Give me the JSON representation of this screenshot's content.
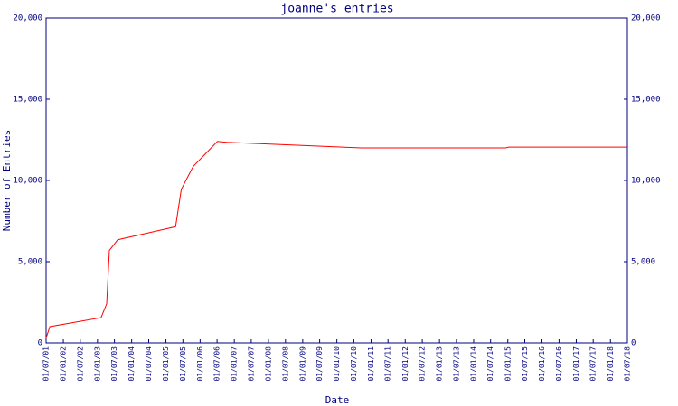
{
  "chart_data": {
    "type": "line",
    "title": "joanne's entries",
    "xlabel": "Date",
    "ylabel": "Number of Entries",
    "x": [
      "01/07/01",
      "10/08/01",
      "08/02/03",
      "09/04/03",
      "08/05/03",
      "05/08/03",
      "14/04/05",
      "14/06/05",
      "18/10/05",
      "05/07/06",
      "11/10/06",
      "21/09/10",
      "10/12/14",
      "12/01/15",
      "01/07/18"
    ],
    "values": [
      300,
      1000,
      1550,
      2400,
      5700,
      6350,
      7150,
      9450,
      10850,
      12400,
      12350,
      12000,
      12000,
      12050,
      12050
    ],
    "color": "#ff0000",
    "xlim": [
      "01/07/01",
      "01/07/18"
    ],
    "xticks": [
      "01/07/01",
      "01/01/02",
      "01/07/02",
      "01/01/03",
      "01/07/03",
      "01/01/04",
      "01/07/04",
      "01/01/05",
      "01/07/05",
      "01/01/06",
      "01/07/06",
      "01/01/07",
      "01/07/07",
      "01/01/08",
      "01/07/08",
      "01/01/09",
      "01/07/09",
      "01/01/10",
      "01/07/10",
      "01/01/11",
      "01/07/11",
      "01/01/12",
      "01/07/12",
      "01/01/13",
      "01/07/13",
      "01/01/14",
      "01/07/14",
      "01/01/15",
      "01/07/15",
      "01/01/16",
      "01/07/16",
      "01/01/17",
      "01/07/17",
      "01/01/18",
      "01/07/18"
    ],
    "ylim": [
      0,
      20000
    ],
    "yticks": [
      0,
      {
        "value": 5000,
        "label": "5,000"
      },
      {
        "value": 10000,
        "label": "10,000"
      },
      {
        "value": 15000,
        "label": "15,000"
      },
      {
        "value": 20000,
        "label": "20,000"
      }
    ],
    "grid": false
  }
}
